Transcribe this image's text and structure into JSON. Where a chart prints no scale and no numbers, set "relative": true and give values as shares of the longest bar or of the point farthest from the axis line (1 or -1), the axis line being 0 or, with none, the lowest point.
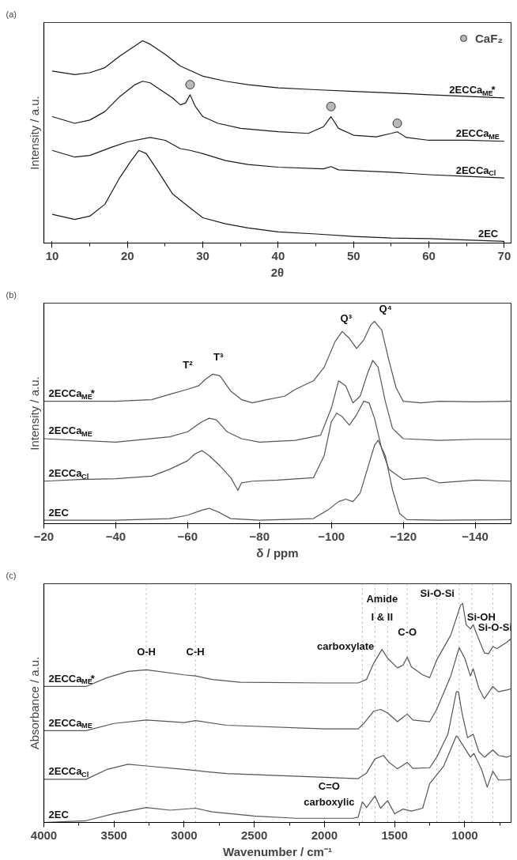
{
  "chart_data": [
    {
      "type": "line",
      "title": "(a)",
      "xlabel": "2θ",
      "ylabel": "Intensity / a.u.",
      "relative": true,
      "xlim": [
        8.9,
        70.9
      ],
      "xticks": [
        10,
        {
          "value": 15,
          "label": null
        },
        20,
        {
          "value": 25,
          "label": null
        },
        30,
        {
          "value": 35,
          "label": null
        },
        40,
        {
          "value": 45,
          "label": null
        },
        50,
        {
          "value": 55,
          "label": null
        },
        60,
        {
          "value": 65,
          "label": null
        },
        70
      ],
      "legend": "top right",
      "series": [
        {
          "name": "2ECCa$_{ME}$*",
          "color": "#1a1a1a",
          "x": [
            10,
            13,
            15,
            17,
            19,
            21,
            22,
            23,
            25,
            27,
            30,
            33,
            36,
            40,
            45,
            50,
            55,
            60,
            65,
            70
          ],
          "values": [
            0.85,
            0.833,
            0.842,
            0.867,
            0.925,
            0.975,
            1.0,
            0.983,
            0.933,
            0.875,
            0.825,
            0.8,
            0.783,
            0.767,
            0.758,
            0.75,
            0.742,
            0.733,
            0.725,
            0.717
          ]
        },
        {
          "name": "2ECCa$_{ME}$",
          "color": "#1a1a1a",
          "x": [
            10,
            13,
            15,
            17,
            19,
            21,
            22,
            23,
            24,
            26,
            27,
            27.7,
            28.3,
            29,
            30,
            32,
            35,
            40,
            44,
            46,
            47,
            48,
            50,
            53,
            55,
            55.8,
            57,
            60,
            65,
            70
          ],
          "values": [
            0.625,
            0.592,
            0.608,
            0.65,
            0.725,
            0.783,
            0.8,
            0.792,
            0.767,
            0.717,
            0.683,
            0.692,
            0.733,
            0.675,
            0.625,
            0.592,
            0.567,
            0.55,
            0.542,
            0.575,
            0.625,
            0.567,
            0.533,
            0.525,
            0.542,
            0.55,
            0.522,
            0.508,
            0.508,
            0.503
          ]
        },
        {
          "name": "2ECCa$_{Cl}$",
          "color": "#1a1a1a",
          "x": [
            10,
            13,
            15,
            18,
            20,
            23,
            25,
            27,
            28.3,
            30,
            33,
            36,
            40,
            46,
            47,
            48,
            55,
            60,
            65,
            70
          ],
          "values": [
            0.458,
            0.425,
            0.433,
            0.475,
            0.5,
            0.522,
            0.508,
            0.467,
            0.458,
            0.442,
            0.408,
            0.388,
            0.375,
            0.367,
            0.378,
            0.362,
            0.35,
            0.338,
            0.33,
            0.322
          ]
        },
        {
          "name": "2EC",
          "color": "#1a1a1a",
          "x": [
            10,
            13,
            15,
            17,
            19,
            20.5,
            21.5,
            22.5,
            24,
            26,
            28,
            30,
            33,
            36,
            40,
            45,
            50,
            55,
            60,
            65,
            70
          ],
          "values": [
            0.142,
            0.117,
            0.133,
            0.192,
            0.325,
            0.408,
            0.458,
            0.442,
            0.358,
            0.242,
            0.183,
            0.125,
            0.095,
            0.075,
            0.055,
            0.045,
            0.033,
            0.025,
            0.022,
            0.015,
            0.008
          ]
        },
        {
          "name": "CaF₂",
          "type": "scatter",
          "marker": "circle",
          "color": "#b8b8b8",
          "x": [
            28.3,
            47,
            55.8
          ],
          "values": [
            0.783,
            0.675,
            0.592
          ]
        }
      ]
    },
    {
      "type": "line",
      "title": "(b)",
      "xlabel": "δ / ppm",
      "ylabel": "Intensity / a.u.",
      "relative": true,
      "xlim": [
        -20,
        -150
      ],
      "xticks": [
        -20,
        -40,
        -60,
        -80,
        -100,
        -120,
        -140
      ],
      "annotations": [
        {
          "text": "T²",
          "x": -60,
          "y": 0.664
        },
        {
          "text": "T³",
          "x": -67,
          "y": 0.739
        },
        {
          "text": "Q³",
          "x": -103,
          "y": 0.95
        },
        {
          "text": "Q⁴",
          "x": -112,
          "y": 1.0
        }
      ],
      "series": [
        {
          "name": "2ECCa$_{ME}$*",
          "color": "#555555",
          "x": [
            -20,
            -40,
            -50,
            -55,
            -60,
            -63,
            -65,
            -67,
            -69,
            -72,
            -75,
            -78,
            -82,
            -87,
            -90,
            -95,
            -98,
            -101,
            -103,
            -105,
            -107,
            -109,
            -111,
            -112,
            -114,
            -116,
            -118,
            -120,
            -125,
            -130,
            -140,
            -150
          ],
          "values": [
            0.605,
            0.605,
            0.613,
            0.639,
            0.664,
            0.681,
            0.714,
            0.739,
            0.731,
            0.655,
            0.613,
            0.597,
            0.613,
            0.63,
            0.664,
            0.706,
            0.773,
            0.899,
            0.95,
            0.916,
            0.866,
            0.908,
            0.983,
            1.0,
            0.958,
            0.807,
            0.672,
            0.605,
            0.597,
            0.605,
            0.602,
            0.605
          ]
        },
        {
          "name": "2ECCa$_{ME}$",
          "color": "#555555",
          "x": [
            -20,
            -40,
            -55,
            -60,
            -64,
            -66,
            -68,
            -71,
            -75,
            -80,
            -90,
            -97,
            -100,
            -102,
            -104,
            -106,
            -108,
            -110,
            -111.5,
            -113,
            -115,
            -117,
            -120,
            -130,
            -140,
            -150
          ],
          "values": [
            0.42,
            0.403,
            0.429,
            0.454,
            0.504,
            0.521,
            0.513,
            0.454,
            0.42,
            0.403,
            0.412,
            0.437,
            0.571,
            0.706,
            0.681,
            0.597,
            0.63,
            0.739,
            0.807,
            0.773,
            0.605,
            0.471,
            0.42,
            0.412,
            0.417,
            0.417
          ]
        },
        {
          "name": "2ECCa$_{Cl}$",
          "color": "#555555",
          "x": [
            -20,
            -30,
            -40,
            -50,
            -55,
            -60,
            -62,
            -64,
            -66,
            -69,
            -72,
            -74,
            -75,
            -78,
            -85,
            -95,
            -98,
            -100,
            -101.5,
            -103,
            -105,
            -107,
            -109,
            -110.5,
            -112,
            -114,
            -116,
            -120,
            -126,
            -130,
            -140,
            -150
          ],
          "values": [
            0.21,
            0.218,
            0.222,
            0.235,
            0.269,
            0.311,
            0.345,
            0.361,
            0.336,
            0.286,
            0.227,
            0.165,
            0.202,
            0.21,
            0.215,
            0.227,
            0.336,
            0.504,
            0.546,
            0.529,
            0.487,
            0.538,
            0.605,
            0.597,
            0.521,
            0.37,
            0.269,
            0.218,
            0.227,
            0.202,
            0.215,
            0.21
          ]
        },
        {
          "name": "2EC",
          "color": "#555555",
          "x": [
            -20,
            -40,
            -55,
            -60,
            -64,
            -66,
            -69,
            -72,
            -80,
            -95,
            -99,
            -102,
            -104,
            -106,
            -108,
            -110,
            -112,
            -113,
            -115,
            -117,
            -119,
            -121,
            -130,
            -150
          ],
          "values": [
            0.017,
            0.017,
            0.025,
            0.042,
            0.067,
            0.076,
            0.054,
            0.025,
            0.017,
            0.025,
            0.067,
            0.109,
            0.121,
            0.109,
            0.151,
            0.269,
            0.387,
            0.412,
            0.336,
            0.168,
            0.05,
            0.02,
            0.017,
            0.02
          ]
        }
      ]
    },
    {
      "type": "line",
      "title": "(c)",
      "xlabel": "Wavenumber / cm⁻¹",
      "ylabel": "Absorbance / a.u.",
      "relative": true,
      "xlim": [
        4000,
        670
      ],
      "xticks": [
        4000,
        {
          "value": 3750,
          "label": null
        },
        3500,
        {
          "value": 3250,
          "label": null
        },
        3000,
        {
          "value": 2750,
          "label": null
        },
        2500,
        {
          "value": 2250,
          "label": null
        },
        2000,
        {
          "value": 1750,
          "label": null
        },
        1500,
        {
          "value": 1250,
          "label": null
        },
        1000,
        {
          "value": 750,
          "label": null
        }
      ],
      "ref_lines": [
        {
          "axis": "x",
          "value": 3270,
          "color": "#b0b0b0",
          "line_style": "dotted"
        },
        {
          "axis": "x",
          "value": 2920,
          "color": "#b0b0b0",
          "line_style": "dotted"
        },
        {
          "axis": "x",
          "value": 1730,
          "color": "#b0b0b0",
          "line_style": "dotted"
        },
        {
          "axis": "x",
          "value": 1640,
          "color": "#b0b0b0",
          "line_style": "dotted"
        },
        {
          "axis": "x",
          "value": 1550,
          "color": "#b0b0b0",
          "line_style": "dotted"
        },
        {
          "axis": "x",
          "value": 1410,
          "color": "#b0b0b0",
          "line_style": "dotted"
        },
        {
          "axis": "x",
          "value": 1200,
          "color": "#b0b0b0",
          "line_style": "dotted"
        },
        {
          "axis": "x",
          "value": 1040,
          "color": "#b0b0b0",
          "line_style": "dotted"
        },
        {
          "axis": "x",
          "value": 950,
          "color": "#b0b0b0",
          "line_style": "dotted"
        },
        {
          "axis": "x",
          "value": 800,
          "color": "#b0b0b0",
          "line_style": "dotted"
        }
      ],
      "annotations": [
        {
          "text": "O-H",
          "x": 3270,
          "y": 0.78
        },
        {
          "text": "C-H",
          "x": 2920,
          "y": 0.78
        },
        {
          "text": "Amide",
          "x": 1640,
          "y": 1.02
        },
        {
          "text": "I & II",
          "x": 1640,
          "y": 0.94
        },
        {
          "text": "carboxylate",
          "x": 1590,
          "y": 0.79
        },
        {
          "text": "C-O",
          "x": 1410,
          "y": 0.87
        },
        {
          "text": "Si-O-Si",
          "x": 1015,
          "y": 1.0
        },
        {
          "text": "Si-OH",
          "x": 950,
          "y": 0.94
        },
        {
          "text": "Si-O-Si",
          "x": 800,
          "y": 0.89
        },
        {
          "text": "C=O",
          "x": 1730,
          "y": 0.094
        },
        {
          "text": "carboxylic",
          "x": 1730,
          "y": 0.094
        }
      ],
      "series": [
        {
          "name": "2ECCa$_{ME}$*",
          "color": "#555555",
          "x": [
            4000,
            3700,
            3550,
            3400,
            3270,
            3000,
            2920,
            2800,
            2600,
            2000,
            1760,
            1700,
            1650,
            1590,
            1550,
            1480,
            1440,
            1410,
            1380,
            1300,
            1250,
            1200,
            1100,
            1030,
            1015,
            990,
            960,
            940,
            910,
            860,
            830,
            800,
            770,
            700,
            670
          ],
          "values": [
            0.621,
            0.621,
            0.661,
            0.69,
            0.697,
            0.674,
            0.669,
            0.653,
            0.64,
            0.637,
            0.637,
            0.653,
            0.726,
            0.79,
            0.75,
            0.706,
            0.718,
            0.755,
            0.71,
            0.674,
            0.661,
            0.742,
            0.855,
            0.992,
            1.0,
            0.903,
            0.884,
            0.903,
            0.852,
            0.774,
            0.771,
            0.803,
            0.794,
            0.823,
            0.839
          ]
        },
        {
          "name": "2ECCa$_{ME}$",
          "color": "#555555",
          "x": [
            4000,
            3700,
            3500,
            3270,
            3000,
            2920,
            2700,
            2000,
            1760,
            1720,
            1650,
            1600,
            1550,
            1480,
            1410,
            1370,
            1250,
            1200,
            1100,
            1040,
            1000,
            960,
            940,
            900,
            860,
            800,
            760,
            700,
            670
          ],
          "values": [
            0.419,
            0.419,
            0.452,
            0.468,
            0.456,
            0.465,
            0.444,
            0.427,
            0.427,
            0.452,
            0.508,
            0.516,
            0.5,
            0.46,
            0.495,
            0.468,
            0.46,
            0.516,
            0.669,
            0.798,
            0.75,
            0.669,
            0.702,
            0.613,
            0.565,
            0.621,
            0.597,
            0.605,
            0.61
          ]
        },
        {
          "name": "2ECCa$_{Cl}$",
          "color": "#555555",
          "x": [
            4000,
            3700,
            3550,
            3400,
            3270,
            3000,
            2700,
            2000,
            1760,
            1700,
            1640,
            1580,
            1540,
            1480,
            1410,
            1370,
            1250,
            1200,
            1120,
            1060,
            1045,
            1020,
            980,
            940,
            900,
            860,
            800,
            760,
            700,
            670
          ],
          "values": [
            0.197,
            0.197,
            0.242,
            0.266,
            0.258,
            0.242,
            0.223,
            0.206,
            0.2,
            0.226,
            0.29,
            0.306,
            0.274,
            0.245,
            0.274,
            0.247,
            0.25,
            0.298,
            0.403,
            0.597,
            0.597,
            0.5,
            0.387,
            0.403,
            0.323,
            0.298,
            0.331,
            0.306,
            0.298,
            0.306
          ]
        },
        {
          "name": "2EC",
          "color": "#555555",
          "x": [
            4000,
            3700,
            3500,
            3270,
            3100,
            2920,
            2800,
            2500,
            2200,
            1800,
            1760,
            1730,
            1700,
            1640,
            1600,
            1550,
            1500,
            1440,
            1380,
            1300,
            1250,
            1150,
            1060,
            1050,
            1000,
            960,
            935,
            880,
            840,
            800,
            760,
            700,
            670
          ],
          "values": [
            0.0,
            0.008,
            0.04,
            0.068,
            0.056,
            0.065,
            0.048,
            0.029,
            0.019,
            0.019,
            0.024,
            0.094,
            0.068,
            0.121,
            0.065,
            0.1,
            0.04,
            0.061,
            0.052,
            0.065,
            0.177,
            0.258,
            0.395,
            0.39,
            0.339,
            0.298,
            0.315,
            0.242,
            0.161,
            0.234,
            0.194,
            0.194,
            0.197
          ]
        }
      ]
    }
  ]
}
